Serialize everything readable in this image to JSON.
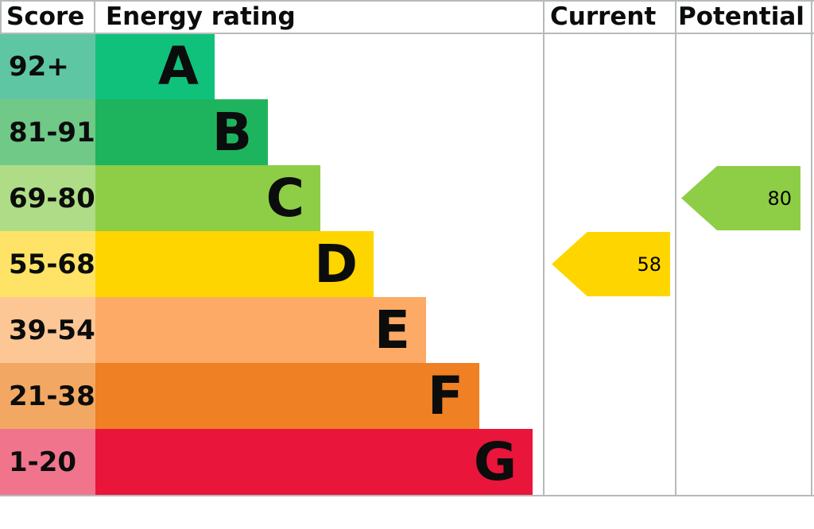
{
  "header": {
    "score": "Score",
    "energy_rating": "Energy rating",
    "current": "Current",
    "potential": "Potential"
  },
  "chart_data": {
    "type": "bar",
    "title": "Energy rating",
    "columns": [
      "Score",
      "Energy rating",
      "Current",
      "Potential"
    ],
    "bands": [
      {
        "letter": "A",
        "score": "92+",
        "color": "#10c17c",
        "tint": "#5fc6a3",
        "bar_width_px": "130px"
      },
      {
        "letter": "B",
        "score": "81-91",
        "color": "#1eb45e",
        "tint": "#70c987",
        "bar_width_px": "197px"
      },
      {
        "letter": "C",
        "score": "69-80",
        "color": "#8dce46",
        "tint": "#afdc86",
        "bar_width_px": "263px"
      },
      {
        "letter": "D",
        "score": "55-68",
        "color": "#ffd500",
        "tint": "#ffe366",
        "bar_width_px": "330px"
      },
      {
        "letter": "E",
        "score": "39-54",
        "color": "#fcaa65",
        "tint": "#fcc795",
        "bar_width_px": "396px"
      },
      {
        "letter": "F",
        "score": "21-38",
        "color": "#ef8023",
        "tint": "#f2a863",
        "bar_width_px": "463px"
      },
      {
        "letter": "G",
        "score": "1-20",
        "color": "#e9153b",
        "tint": "#f0758c",
        "bar_width_px": "530px"
      }
    ],
    "current": {
      "value": 58,
      "band": "D",
      "color": "#ffd500"
    },
    "potential": {
      "value": 80,
      "band": "C",
      "color": "#8dce46"
    }
  }
}
